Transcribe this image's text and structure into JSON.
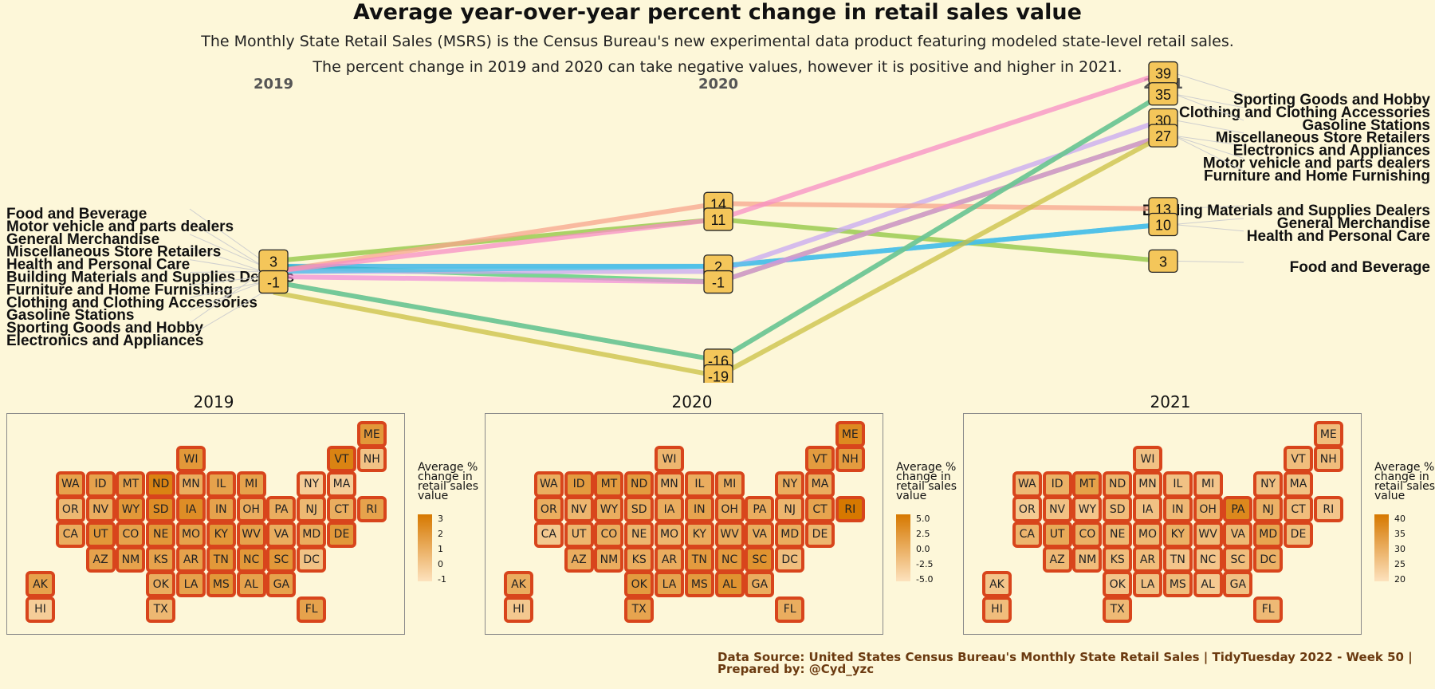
{
  "header": {
    "title": "Average year-over-year percent change in retail sales value",
    "subtitle1": "The Monthly State Retail Sales (MSRS) is the Census Bureau's new experimental data product featuring modeled state-level retail sales.",
    "subtitle2": "The percent change in 2019 and 2020 can take negative values, however it is positive and higher in 2021."
  },
  "chart_data": [
    {
      "type": "line",
      "subtype": "slope",
      "categories": [
        "2019",
        "2020",
        "2021"
      ],
      "labels_left": [
        "Food and Beverage",
        "Motor vehicle and parts dealers",
        "General Merchandise",
        "Miscellaneous Store Retailers",
        "Health and Personal Care",
        "Building Materials and Supplies Dealers",
        "Furniture and Home Furnishing",
        "Clothing and Clothing Accessories",
        "Gasoline Stations",
        "Sporting Goods and Hobby",
        "Electronics and Appliances"
      ],
      "labels_right": [
        "Sporting Goods and Hobby",
        "Clothing and Clothing Accessories",
        "Gasoline Stations",
        "Miscellaneous Store Retailers",
        "Electronics and Appliances",
        "Motor vehicle and parts dealers",
        "Furniture and Home Furnishing",
        "Building Materials and Supplies Dealers",
        "General Merchandise",
        "Health and Personal Care",
        "Food and Beverage"
      ],
      "series": [
        {
          "name": "Food and Beverage",
          "values": [
            3,
            11,
            3
          ],
          "color": "#8ec63f"
        },
        {
          "name": "Motor vehicle and parts dealers",
          "values": [
            2,
            -1,
            27
          ],
          "color": "#4ccc78"
        },
        {
          "name": "General Merchandise",
          "values": [
            2,
            2,
            10
          ],
          "color": "#29aee8"
        },
        {
          "name": "Miscellaneous Store Retailers",
          "values": [
            1,
            1,
            30
          ],
          "color": "#c7a8f2"
        },
        {
          "name": "Health and Personal Care",
          "values": [
            1,
            2,
            10
          ],
          "color": "#4dc3e8"
        },
        {
          "name": "Building Materials and Supplies Dealers",
          "values": [
            1,
            14,
            13
          ],
          "color": "#f7a58c"
        },
        {
          "name": "Furniture and Home Furnishing",
          "values": [
            0,
            -1,
            27
          ],
          "color": "#f08fd8"
        },
        {
          "name": "Clothing and Clothing Accessories",
          "values": [
            -1,
            -16,
            35
          ],
          "color": "#e8b868"
        },
        {
          "name": "Gasoline Stations",
          "values": [
            -1,
            -16,
            35
          ],
          "color": "#4ccaa0"
        },
        {
          "name": "Sporting Goods and Hobby",
          "values": [
            1,
            11,
            39
          ],
          "color": "#f78fc4"
        },
        {
          "name": "Electronics and Appliances",
          "values": [
            -3,
            -19,
            27
          ],
          "color": "#c9c042"
        }
      ],
      "box_labels": {
        "2019": [
          "3",
          "-1"
        ],
        "2020": [
          "14",
          "11",
          "2",
          "-1",
          "-16",
          "-19"
        ],
        "2021": [
          "39",
          "35",
          "30",
          "27",
          "13",
          "10",
          "3"
        ]
      }
    },
    {
      "type": "heatmap",
      "subtype": "tile-map",
      "panels": [
        {
          "title": "2019",
          "legend_title": "Average % change in retail sales value",
          "legend_ticks": [
            "3",
            "2",
            "1",
            "0",
            "-1"
          ],
          "range": [
            -1.5,
            3.5
          ],
          "values": {
            "ME": 2,
            "WI": 2,
            "VT": 3,
            "NH": 0,
            "WA": 1.5,
            "ID": 1.5,
            "MT": 1.5,
            "ND": 3,
            "MN": 1,
            "IL": 1.5,
            "MI": 1.5,
            "NY": -0.5,
            "MA": -0.5,
            "OR": 0.5,
            "NV": 1,
            "WY": 2,
            "SD": 2.5,
            "IA": 2.5,
            "IN": 1.5,
            "OH": 1,
            "PA": 1,
            "NJ": 0.5,
            "CT": 1,
            "RI": 1.5,
            "CA": 1,
            "UT": 2,
            "CO": 1.5,
            "NE": 2,
            "MO": 1.5,
            "KY": 2,
            "WV": 1.5,
            "VA": 1,
            "MD": 1,
            "DE": 2,
            "AZ": 1.5,
            "NM": 1.5,
            "KS": 1.5,
            "AR": 1.5,
            "TN": 2,
            "NC": 2,
            "SC": 2,
            "DC": 0,
            "AK": 1.5,
            "OK": 1,
            "LA": 1.5,
            "MS": 2,
            "AL": 1.5,
            "GA": 1.5,
            "HI": -0.5,
            "TX": 0.5,
            "FL": 1.5
          }
        },
        {
          "title": "2020",
          "legend_title": "Average % change in retail sales value",
          "legend_ticks": [
            "5.0",
            "2.5",
            "0.0",
            "-2.5",
            "-5.0"
          ],
          "range": [
            -6,
            6
          ],
          "values": {
            "ME": 4,
            "WI": -1,
            "VT": 2,
            "NH": 2,
            "WA": 0,
            "ID": 2,
            "MT": 2,
            "ND": 2,
            "MN": -1,
            "IL": 0,
            "MI": 0,
            "NY": 0,
            "MA": 0,
            "OR": 0,
            "NV": -1,
            "WY": 0,
            "SD": 0,
            "IA": 0,
            "IN": 1,
            "OH": 0,
            "PA": 0,
            "NJ": -1,
            "CT": 1,
            "RI": 6,
            "CA": -3,
            "UT": -1,
            "CO": 0,
            "NE": -1,
            "MO": -1,
            "KY": 0,
            "WV": 0,
            "VA": 0,
            "MD": 0,
            "DE": -1,
            "AZ": 0,
            "NM": 0,
            "KS": 0,
            "AR": 0,
            "TN": 2,
            "NC": 2,
            "SC": 3,
            "DC": -2,
            "AK": 0,
            "OK": 2,
            "LA": 1,
            "MS": 2,
            "AL": 3,
            "GA": 0,
            "HI": -3,
            "TX": 1,
            "FL": 0
          }
        },
        {
          "title": "2021",
          "legend_title": "Average % change in retail sales value",
          "legend_ticks": [
            "40",
            "35",
            "30",
            "25",
            "20"
          ],
          "range": [
            18,
            44
          ],
          "values": {
            "ME": 27,
            "WI": 26,
            "VT": 27,
            "NH": 27,
            "WA": 28,
            "ID": 30,
            "MT": 34,
            "ND": 29,
            "MN": 26,
            "IL": 26,
            "MI": 25,
            "NY": 26,
            "MA": 26,
            "OR": 24,
            "NV": 26,
            "WY": 25,
            "SD": 27,
            "IA": 26,
            "IN": 28,
            "OH": 29,
            "PA": 40,
            "NJ": 30,
            "CT": 27,
            "RI": 25,
            "CA": 29,
            "UT": 32,
            "CO": 30,
            "NE": 28,
            "MO": 28,
            "KY": 30,
            "WV": 27,
            "VA": 28,
            "MD": 33,
            "DE": 27,
            "AZ": 28,
            "NM": 27,
            "KS": 27,
            "AR": 27,
            "TN": 25,
            "NC": 25,
            "SC": 27,
            "DC": 30,
            "AK": 25,
            "OK": 25,
            "LA": 26,
            "MS": 27,
            "AL": 24,
            "GA": 26,
            "HI": 27,
            "TX": 28,
            "FL": 28
          }
        }
      ]
    }
  ],
  "footer": {
    "line1": "Data Source: United States Census Bureau's Monthly State Retail Sales | TidyTuesday 2022 - Week 50 |",
    "line2": "Prepared by: @Cyd_yzc"
  }
}
